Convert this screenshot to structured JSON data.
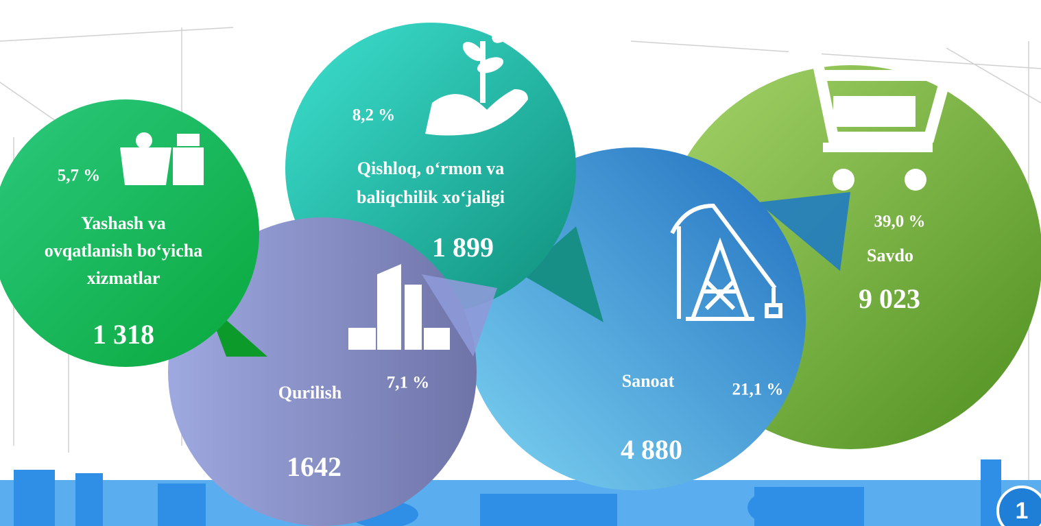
{
  "sectors": [
    {
      "name_lines": [
        "Yashash va",
        "ovqatlanish bo‘yicha",
        "xizmatlar"
      ],
      "percent": "5,7 %",
      "value": "1 318"
    },
    {
      "name_lines": [
        "Qishloq, o‘rmon va",
        "baliqchilik xo‘jaligi"
      ],
      "percent": "8,2 %",
      "value": "1 899"
    },
    {
      "name_lines": [
        "Qurilish"
      ],
      "percent": "7,1 %",
      "value": "1642"
    },
    {
      "name_lines": [
        "Sanoat"
      ],
      "percent": "21,1 %",
      "value": "4 880"
    },
    {
      "name_lines": [
        "Savdo"
      ],
      "percent": "39,0 %",
      "value": "9 023"
    }
  ],
  "page_number": "1"
}
